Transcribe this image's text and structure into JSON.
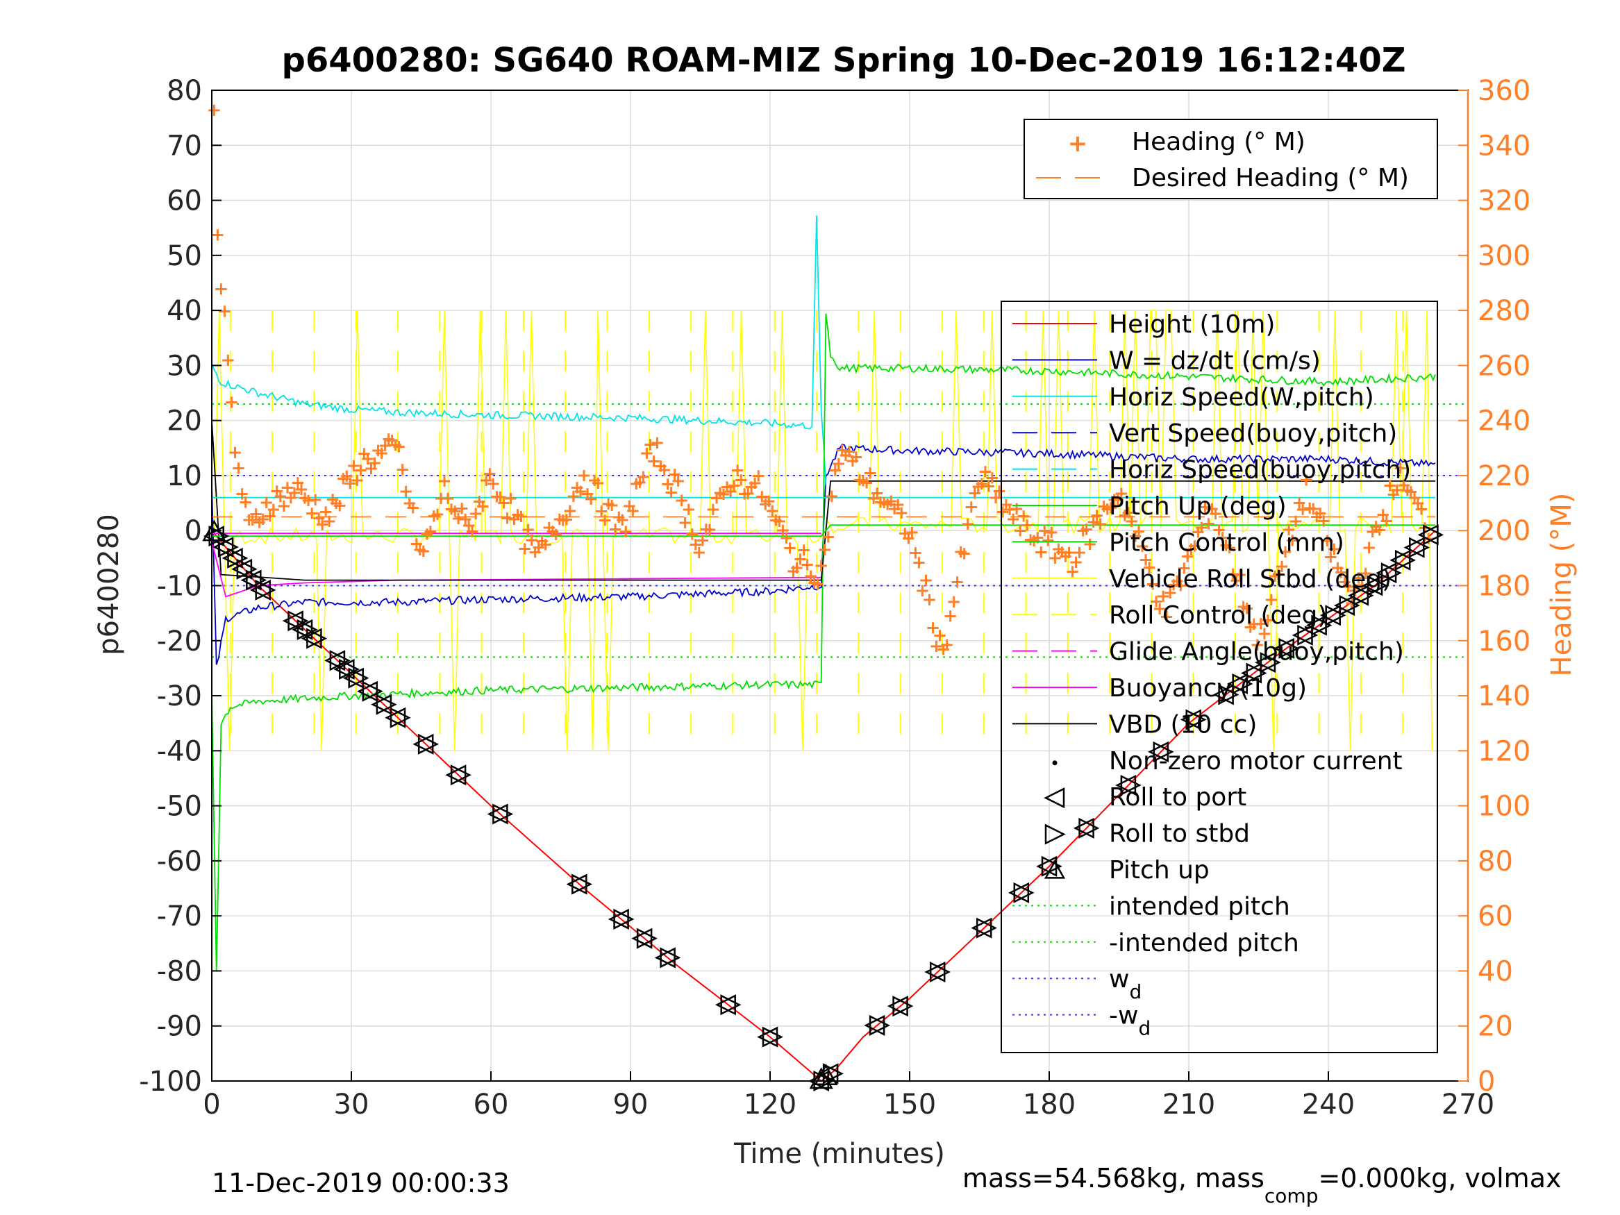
{
  "title": "p6400280: SG640 ROAM-MIZ Spring 10-Dec-2019 16:12:40Z",
  "footer_left": "11-Dec-2019 00:00:33",
  "footer_right": {
    "pre": "mass=54.568kg, mass",
    "sub": "comp",
    "post": "=0.000kg, volmax"
  },
  "colors": {
    "heading": "#ff7f27",
    "height": "#ff0000",
    "w": "#0000cc",
    "horiz": "#00e5e5",
    "pitch": "#00dd00",
    "roll": "#ffff00",
    "glide": "#ff00ff",
    "vbd": "#000000",
    "wd": "#3333ff"
  },
  "chart_data": {
    "type": "line",
    "xlabel": "Time (minutes)",
    "ylabel_left": "p6400280",
    "ylabel_right": "Heading (°M)",
    "xlim": [
      0,
      270
    ],
    "ylim_left": [
      -100,
      80
    ],
    "ylim_right": [
      0,
      360
    ],
    "xticks": [
      0,
      30,
      60,
      90,
      120,
      150,
      180,
      210,
      240,
      270
    ],
    "yticks_left": [
      80,
      70,
      60,
      50,
      40,
      30,
      20,
      10,
      0,
      -10,
      -20,
      -30,
      -40,
      -50,
      -60,
      -70,
      -80,
      -90,
      -100
    ],
    "yticks_right": [
      360,
      340,
      320,
      300,
      280,
      260,
      240,
      220,
      200,
      180,
      160,
      140,
      120,
      100,
      80,
      60,
      40,
      20,
      0
    ],
    "grid": true,
    "legend_top": {
      "placement": "top-right",
      "entries": [
        "Heading (° M)",
        "Desired Heading (° M)"
      ]
    },
    "legend_main": {
      "placement": "right",
      "entries": [
        "Height (10m)",
        "W = dz/dt (cm/s)",
        "Horiz Speed(W,pitch)",
        "Vert Speed(buoy,pitch)",
        "Horiz Speed(buoy,pitch)",
        "Pitch Up (deg)",
        "Pitch Control (mm)",
        "Vehicle Roll Stbd (deg)",
        "Roll Control (deg)",
        "Glide Angle(buoy,pitch)",
        "Buoyancy (10g)",
        "VBD (10 cc)",
        "Non-zero motor current",
        "Roll to port",
        "Roll to stbd",
        "Pitch up",
        "intended pitch",
        "-intended pitch",
        "w_d",
        "-w_d"
      ],
      "wd_label": {
        "base": "w",
        "sub": "d"
      },
      "neg_wd_label": {
        "base": "-w",
        "sub": "d"
      }
    },
    "reference_lines": {
      "intended_pitch": 23,
      "neg_intended_pitch": -23,
      "wd": 10,
      "neg_wd": -10
    },
    "series": [
      {
        "name": "Height (10m)",
        "x": [
          0,
          2,
          5,
          10,
          20,
          30,
          40,
          60,
          80,
          100,
          120,
          131,
          134,
          140,
          150,
          165,
          180,
          195,
          210,
          230,
          250,
          263
        ],
        "y": [
          0,
          -2,
          -5,
          -10,
          -18,
          -26,
          -34,
          -50,
          -65,
          -79,
          -92,
          -100,
          -98,
          -92,
          -85,
          -73,
          -61,
          -48,
          -35,
          -22,
          -10,
          0
        ]
      },
      {
        "name": "W = dz/dt (cm/s)",
        "x": [
          0,
          1,
          3,
          10,
          20,
          40,
          60,
          90,
          120,
          131,
          132,
          135,
          150,
          180,
          210,
          240,
          263
        ],
        "y": [
          8,
          -25,
          -16,
          -14,
          -13,
          -13,
          -12.5,
          -12,
          -11,
          -10,
          10,
          15,
          14.5,
          14,
          13,
          13,
          12
        ]
      },
      {
        "name": "Horiz Speed(W,pitch)",
        "x": [
          0,
          2,
          10,
          20,
          30,
          40,
          60,
          90,
          120,
          129,
          130,
          131,
          132
        ],
        "y": [
          30,
          27,
          25,
          23,
          22,
          21.5,
          21,
          20.5,
          19.5,
          19,
          57,
          22,
          8
        ]
      },
      {
        "name": "Pitch Control (mm)",
        "x": [
          0,
          1,
          2,
          4,
          10,
          30,
          60,
          90,
          120,
          131,
          132,
          133,
          135,
          150,
          180,
          210,
          240,
          263
        ],
        "y": [
          -30,
          -80,
          -35,
          -32,
          -31,
          -30,
          -29,
          -28.5,
          -28,
          -28,
          40,
          32,
          29.5,
          29.5,
          29,
          28,
          27,
          28
        ]
      },
      {
        "name": "Buoyancy (10g)",
        "x": [
          0,
          3,
          10,
          20,
          40,
          80,
          131
        ],
        "y": [
          -2,
          -12,
          -10,
          -9.5,
          -9,
          -8.8,
          -8.5
        ]
      },
      {
        "name": "VBD (10 cc)",
        "x": [
          0,
          2,
          20,
          60,
          131,
          133,
          263
        ],
        "y": [
          20,
          -8,
          -9,
          -9,
          -9,
          9,
          9
        ]
      },
      {
        "name": "Horiz Speed(buoy,pitch)",
        "x": [
          0,
          131,
          133,
          263
        ],
        "y": [
          6,
          6,
          6,
          6
        ]
      },
      {
        "name": "Pitch Up (deg)",
        "x": [
          0,
          131,
          133,
          263
        ],
        "y": [
          -1,
          -1,
          1,
          1
        ]
      },
      {
        "name": "Glide Angle(buoy,pitch)",
        "x": [
          0,
          131
        ],
        "y": [
          -0.5,
          -0.5
        ]
      },
      {
        "name": "Heading (° M)",
        "axis": "right",
        "x": [
          0.5,
          1,
          2,
          3,
          5,
          8,
          12,
          18,
          25,
          32,
          40,
          45,
          50,
          55,
          60,
          65,
          70,
          80,
          88,
          95,
          100,
          105,
          112,
          118,
          125,
          131,
          135,
          140,
          150,
          157,
          165,
          175,
          185,
          195,
          205,
          215,
          225,
          235,
          245,
          255,
          262
        ],
        "y": [
          355,
          320,
          290,
          270,
          230,
          200,
          210,
          215,
          205,
          225,
          230,
          190,
          215,
          200,
          220,
          205,
          190,
          220,
          200,
          230,
          215,
          195,
          220,
          215,
          190,
          185,
          230,
          220,
          200,
          155,
          220,
          200,
          190,
          215,
          170,
          210,
          160,
          215,
          175,
          220,
          200
        ]
      },
      {
        "name": "Desired Heading (° M)",
        "axis": "right",
        "x": [
          0,
          263
        ],
        "y": [
          205,
          205
        ]
      }
    ],
    "markers": {
      "descent_x": [
        1,
        3,
        5,
        7,
        9,
        11,
        18,
        20,
        22,
        27,
        29,
        31,
        34,
        37,
        40,
        46,
        53,
        62,
        79,
        88,
        93,
        98,
        111,
        120,
        131,
        133
      ],
      "ascent_x": [
        143,
        148,
        156,
        166,
        174,
        180,
        188,
        197,
        204,
        211,
        218,
        221,
        224,
        227,
        231,
        235,
        238,
        241,
        244,
        247,
        250,
        253,
        256,
        259,
        262
      ]
    }
  }
}
